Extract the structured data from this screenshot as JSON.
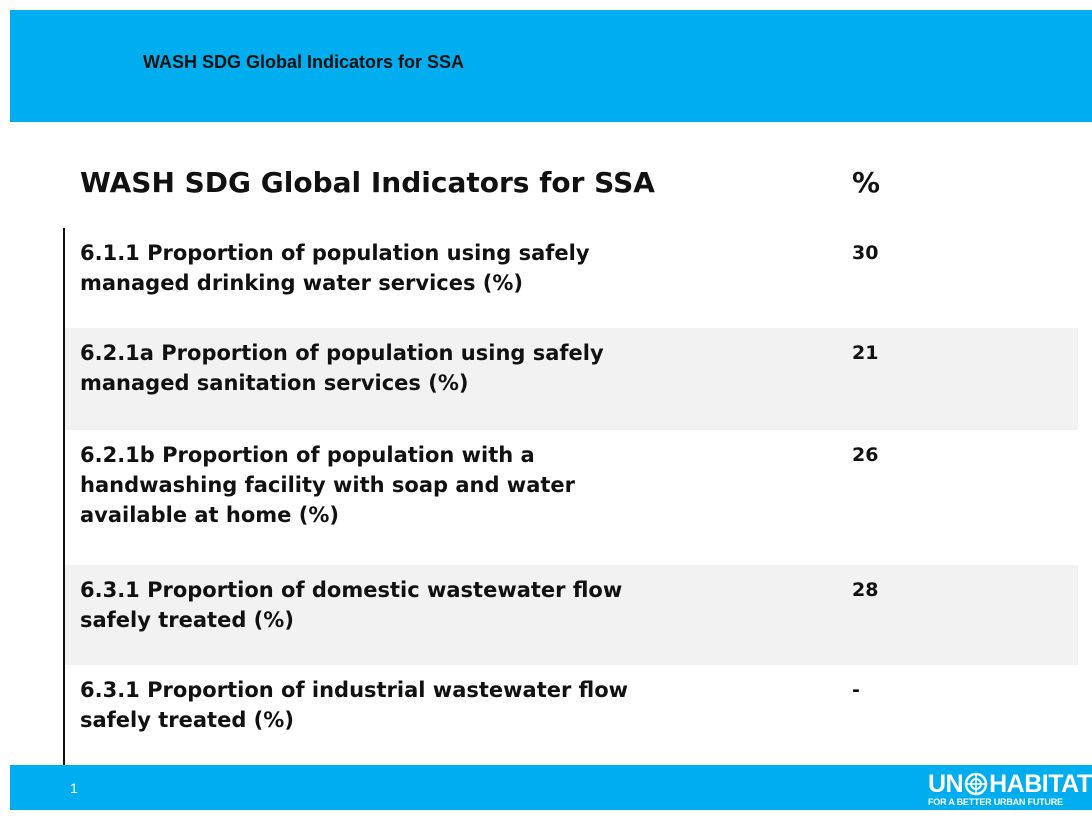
{
  "header": {
    "title": "WASH SDG Global Indicators for SSA"
  },
  "table": {
    "columns": [
      "WASH SDG Global Indicators for SSA",
      "%"
    ],
    "rows": [
      {
        "indicator": [
          "6.1.1 Proportion of population using safely",
          "managed drinking water services (%)"
        ],
        "value": 30
      },
      {
        "indicator": [
          "6.2.1a Proportion of population using safely",
          "managed sanitation services (%)"
        ],
        "value": 21
      },
      {
        "indicator": [
          "6.2.1b Proportion of population with a",
          "handwashing facility with soap and water",
          "available at home (%)"
        ],
        "value": 26
      },
      {
        "indicator": [
          "6.3.1 Proportion of domestic wastewater flow",
          "safely treated (%)"
        ],
        "value": 28
      },
      {
        "indicator": [
          "6.3.1 Proportion of industrial wastewater flow",
          "safely treated (%)"
        ],
        "value": "-"
      }
    ]
  },
  "footer": {
    "page_number": 1,
    "logo": {
      "left": "UN",
      "right": "HABITAT",
      "tagline": "FOR A BETTER URBAN FUTURE"
    }
  }
}
